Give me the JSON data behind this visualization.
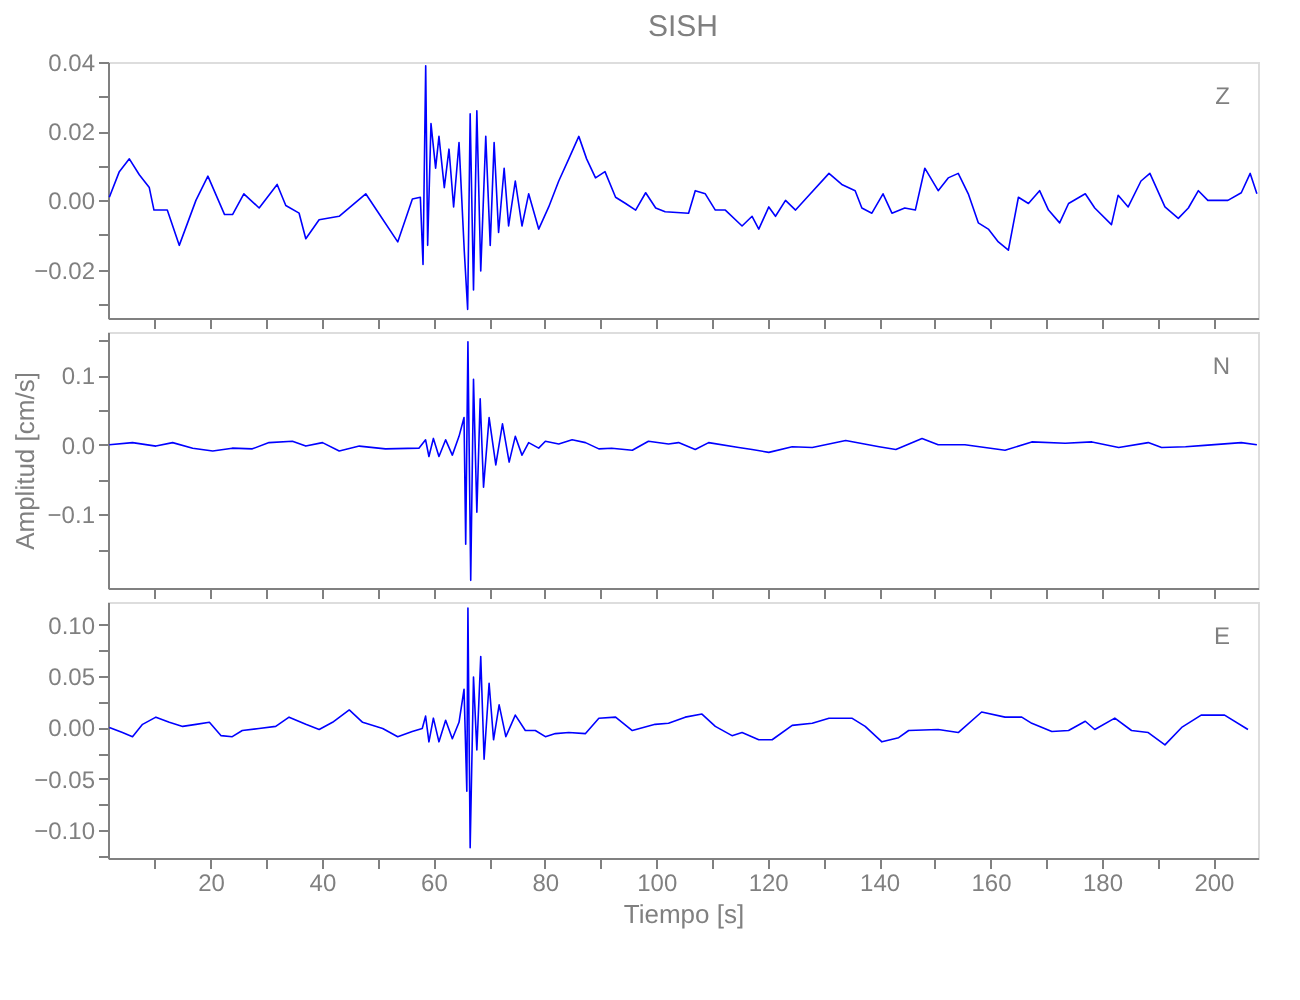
{
  "chart_data": [
    {
      "type": "line",
      "title": "SISH",
      "annotations": [
        "Z"
      ],
      "xlim": [
        1.6,
        208
      ],
      "xticks": [
        {
          "value": 10,
          "label": null
        },
        20,
        {
          "value": 30,
          "label": null
        },
        40,
        {
          "value": 50,
          "label": null
        },
        60,
        {
          "value": 70,
          "label": null
        },
        80,
        {
          "value": 90,
          "label": null
        },
        100,
        {
          "value": 110,
          "label": null
        },
        120,
        {
          "value": 130,
          "label": null
        },
        140,
        {
          "value": 150,
          "label": null
        },
        160,
        {
          "value": 170,
          "label": null
        },
        180,
        {
          "value": 190,
          "label": null
        },
        200
      ],
      "ylim": [
        -0.034,
        0.04
      ],
      "yticks": [
        {
          "value": -0.03,
          "label": null
        },
        {
          "value": -0.02,
          "label": "−0.02"
        },
        {
          "value": -0.01,
          "label": null
        },
        {
          "value": 0,
          "label": "0.00"
        },
        {
          "value": 0.01,
          "label": null
        },
        {
          "value": 0.02,
          "label": "0.02"
        },
        {
          "value": 0.03,
          "label": null
        },
        {
          "value": 0.04,
          "label": "0.04"
        }
      ],
      "tick_labels": "y",
      "grid": false,
      "line_style": "solid",
      "marker": "none",
      "series": [
        {
          "color": "#0000ff",
          "x": [
            1.84,
            3.63,
            5.43,
            7.22,
            9.01,
            9.85,
            12.24,
            14.39,
            17.38,
            19.53,
            22.52,
            23.95,
            25.98,
            28.73,
            31.96,
            33.51,
            35.9,
            37.1,
            39.49,
            43.08,
            47.86,
            50.01,
            53.6,
            56.23,
            57.66,
            58.14,
            58.62,
            58.97,
            59.57,
            60.4,
            61.0,
            61.96,
            62.8,
            63.63,
            64.6,
            65.55,
            66.15,
            66.6,
            67.2,
            67.8,
            68.5,
            69.4,
            70.2,
            70.9,
            71.7,
            72.7,
            73.5,
            74.7,
            75.9,
            77.1,
            78.9,
            80.7,
            82.5,
            84.3,
            86.1,
            87.5,
            89.1,
            90.8,
            92.7,
            94.5,
            96.3,
            98.1,
            99.9,
            101.6,
            105.8,
            107.0,
            108.8,
            110.6,
            112.4,
            115.4,
            117.2,
            118.4,
            120.2,
            121.4,
            123.2,
            125.0,
            126.8,
            131.0,
            133.3,
            135.7,
            136.9,
            138.7,
            140.7,
            142.3,
            144.6,
            146.5,
            148.2,
            150.6,
            152.4,
            154.2,
            156.0,
            157.8,
            159.6,
            161.4,
            163.2,
            165.0,
            166.8,
            168.8,
            170.4,
            172.4,
            174.0,
            177.0,
            178.7,
            181.7,
            182.9,
            184.7,
            187.0,
            188.6,
            191.3,
            193.7,
            195.5,
            197.3,
            199.0,
            202.6,
            205.0,
            206.6,
            207.8
          ],
          "values": [
            0.0009,
            0.0083,
            0.012,
            0.0074,
            0.0037,
            -0.0028,
            -0.0028,
            -0.013,
            0.0,
            0.007,
            -0.0041,
            -0.0041,
            0.0019,
            -0.0022,
            0.0046,
            -0.0015,
            -0.0037,
            -0.0111,
            -0.0056,
            -0.0046,
            0.0019,
            -0.0033,
            -0.012,
            0.0004,
            0.0009,
            -0.0185,
            0.0389,
            -0.013,
            0.0222,
            0.0093,
            0.0185,
            0.0037,
            0.0148,
            -0.0019,
            0.0167,
            -0.0148,
            -0.0315,
            0.025,
            -0.0259,
            0.0259,
            -0.0204,
            0.0185,
            -0.013,
            0.0167,
            -0.0093,
            0.0093,
            -0.0074,
            0.0056,
            -0.0074,
            0.0019,
            -0.0083,
            -0.0019,
            0.0056,
            0.012,
            0.0185,
            0.012,
            0.0065,
            0.0083,
            0.0009,
            -0.0009,
            -0.0028,
            0.0022,
            -0.0022,
            -0.0033,
            -0.0037,
            0.0028,
            0.0019,
            -0.0028,
            -0.0028,
            -0.0074,
            -0.0046,
            -0.0083,
            -0.0019,
            -0.0046,
            0.0,
            -0.0028,
            0.0004,
            0.0078,
            0.0046,
            0.0028,
            -0.0022,
            -0.0037,
            0.0019,
            -0.0037,
            -0.0022,
            -0.0028,
            0.0093,
            0.0028,
            0.0065,
            0.0078,
            0.0019,
            -0.0065,
            -0.0083,
            -0.012,
            -0.0144,
            0.0009,
            -0.0009,
            0.0028,
            -0.0028,
            -0.0065,
            -0.0009,
            0.0019,
            -0.0022,
            -0.007,
            0.0015,
            -0.0019,
            0.0056,
            0.0078,
            -0.0019,
            -0.0052,
            -0.0022,
            0.0028,
            0.0,
            0.0,
            0.0022,
            0.0078,
            0.0019
          ]
        }
      ]
    },
    {
      "type": "line",
      "ylabel": "Amplitud [cm/s]",
      "annotations": [
        "N"
      ],
      "xlim": [
        1.6,
        208
      ],
      "xticks": [
        {
          "value": 10,
          "label": null
        },
        20,
        {
          "value": 30,
          "label": null
        },
        40,
        {
          "value": 50,
          "label": null
        },
        60,
        {
          "value": 70,
          "label": null
        },
        80,
        {
          "value": 90,
          "label": null
        },
        100,
        {
          "value": 110,
          "label": null
        },
        120,
        {
          "value": 130,
          "label": null
        },
        140,
        {
          "value": 150,
          "label": null
        },
        160,
        {
          "value": 170,
          "label": null
        },
        180,
        {
          "value": 190,
          "label": null
        },
        200
      ],
      "ylim": [
        -0.206,
        0.162
      ],
      "yticks": [
        {
          "value": -0.15,
          "label": null
        },
        {
          "value": -0.1,
          "label": "−0.1"
        },
        {
          "value": -0.05,
          "label": null
        },
        {
          "value": 0,
          "label": "0.0"
        },
        {
          "value": 0.05,
          "label": null
        },
        {
          "value": 0.1,
          "label": "0.1"
        },
        {
          "value": 0.15,
          "label": null
        }
      ],
      "tick_labels": "y",
      "grid": false,
      "line_style": "solid",
      "marker": "none",
      "series": [
        {
          "color": "#0000ff",
          "x": [
            1.84,
            6.0,
            10.2,
            13.2,
            16.8,
            20.4,
            23.9,
            27.5,
            30.5,
            34.7,
            37.1,
            40.1,
            43.1,
            46.7,
            51.4,
            57.4,
            58.6,
            59.2,
            60.0,
            61.0,
            62.2,
            63.4,
            64.6,
            65.5,
            65.8,
            66.2,
            66.7,
            67.2,
            67.8,
            68.4,
            69.0,
            70.0,
            71.2,
            72.4,
            73.6,
            74.7,
            75.9,
            77.1,
            78.9,
            80.1,
            82.5,
            84.9,
            87.3,
            89.7,
            92.0,
            95.7,
            98.6,
            102.2,
            104.0,
            107.0,
            109.4,
            114.8,
            117.2,
            120.2,
            124.4,
            128.0,
            134.0,
            140.0,
            143.0,
            147.7,
            150.6,
            155.4,
            159.0,
            162.6,
            167.4,
            173.4,
            178.2,
            183.0,
            188.3,
            190.7,
            195.0,
            198.4,
            205.0,
            207.8
          ],
          "values": [
            0.0,
            0.003,
            -0.002,
            0.003,
            -0.005,
            -0.009,
            -0.005,
            -0.006,
            0.003,
            0.005,
            -0.002,
            0.003,
            -0.009,
            -0.002,
            -0.006,
            -0.005,
            0.007,
            -0.017,
            0.009,
            -0.017,
            0.007,
            -0.015,
            0.012,
            0.039,
            -0.143,
            0.148,
            -0.195,
            0.094,
            -0.097,
            0.066,
            -0.061,
            0.039,
            -0.029,
            0.03,
            -0.025,
            0.012,
            -0.015,
            0.003,
            -0.005,
            0.005,
            0.001,
            0.007,
            0.003,
            -0.006,
            -0.005,
            -0.008,
            0.005,
            0.001,
            0.003,
            -0.007,
            0.003,
            -0.004,
            -0.007,
            -0.011,
            -0.003,
            -0.004,
            0.006,
            -0.003,
            -0.007,
            0.009,
            0.0,
            0.0,
            -0.004,
            -0.008,
            0.004,
            0.002,
            0.004,
            -0.004,
            0.003,
            -0.004,
            -0.003,
            -0.001,
            0.003,
            0.0
          ]
        }
      ]
    },
    {
      "type": "line",
      "xlabel": "Tiempo [s]",
      "annotations": [
        "E"
      ],
      "xlim": [
        1.6,
        208
      ],
      "xticks": [
        {
          "value": 10,
          "label": null
        },
        20,
        {
          "value": 30,
          "label": null
        },
        40,
        {
          "value": 50,
          "label": null
        },
        60,
        {
          "value": 70,
          "label": null
        },
        80,
        {
          "value": 90,
          "label": null
        },
        100,
        {
          "value": 110,
          "label": null
        },
        120,
        {
          "value": 130,
          "label": null
        },
        140,
        {
          "value": 150,
          "label": null
        },
        160,
        {
          "value": 170,
          "label": null
        },
        180,
        {
          "value": 190,
          "label": null
        },
        200
      ],
      "ylim": [
        -0.127,
        0.122
      ],
      "yticks": [
        {
          "value": -0.125,
          "label": null
        },
        {
          "value": -0.1,
          "label": "−0.10"
        },
        {
          "value": -0.075,
          "label": null
        },
        {
          "value": -0.05,
          "label": "−0.05"
        },
        {
          "value": -0.025,
          "label": null
        },
        {
          "value": 0,
          "label": "0.00"
        },
        {
          "value": 0.025,
          "label": null
        },
        {
          "value": 0.05,
          "label": "0.05"
        },
        {
          "value": 0.075,
          "label": null
        },
        {
          "value": 0.1,
          "label": "0.10"
        }
      ],
      "grid": false,
      "line_style": "solid",
      "marker": "none",
      "series": [
        {
          "color": "#0000ff",
          "x": [
            1.84,
            4.2,
            6.0,
            7.8,
            10.2,
            12.6,
            15.0,
            17.4,
            19.8,
            21.9,
            23.9,
            25.7,
            28.7,
            31.7,
            34.1,
            37.1,
            39.5,
            41.9,
            44.9,
            47.3,
            50.9,
            53.6,
            56.2,
            58.0,
            58.6,
            59.2,
            60.0,
            61.0,
            62.2,
            63.4,
            64.6,
            65.5,
            66.0,
            66.2,
            66.6,
            67.2,
            67.8,
            68.5,
            69.1,
            70.0,
            70.8,
            71.8,
            73.0,
            74.7,
            76.5,
            78.3,
            80.1,
            81.9,
            84.3,
            87.3,
            89.7,
            92.7,
            95.7,
            99.8,
            102.2,
            105.2,
            108.2,
            110.6,
            113.6,
            115.4,
            118.4,
            120.8,
            124.4,
            128.0,
            131.0,
            135.1,
            137.5,
            140.5,
            143.5,
            145.3,
            150.6,
            154.2,
            158.4,
            162.6,
            165.6,
            167.4,
            171.0,
            174.0,
            177.0,
            178.7,
            182.3,
            185.3,
            188.3,
            191.3,
            194.3,
            197.8,
            202.0,
            206.2
          ],
          "values": [
            0.0,
            -0.005,
            -0.009,
            0.003,
            0.01,
            0.005,
            0.001,
            0.003,
            0.005,
            -0.008,
            -0.009,
            -0.003,
            -0.001,
            0.001,
            0.01,
            0.003,
            -0.002,
            0.005,
            0.017,
            0.005,
            -0.001,
            -0.009,
            -0.004,
            -0.001,
            0.011,
            -0.014,
            0.009,
            -0.014,
            0.007,
            -0.011,
            0.005,
            0.037,
            -0.062,
            0.116,
            -0.117,
            0.049,
            -0.022,
            0.069,
            -0.031,
            0.043,
            -0.012,
            0.022,
            -0.009,
            0.012,
            -0.003,
            -0.003,
            -0.009,
            -0.006,
            -0.005,
            -0.006,
            0.009,
            0.01,
            -0.003,
            0.003,
            0.004,
            0.01,
            0.013,
            0.001,
            -0.008,
            -0.005,
            -0.012,
            -0.012,
            0.002,
            0.004,
            0.009,
            0.009,
            0.001,
            -0.014,
            -0.01,
            -0.003,
            -0.002,
            -0.005,
            0.015,
            0.01,
            0.01,
            0.004,
            -0.004,
            -0.003,
            0.006,
            -0.002,
            0.009,
            -0.003,
            -0.005,
            -0.017,
            0.0,
            0.012,
            0.012,
            -0.002
          ]
        }
      ]
    }
  ]
}
